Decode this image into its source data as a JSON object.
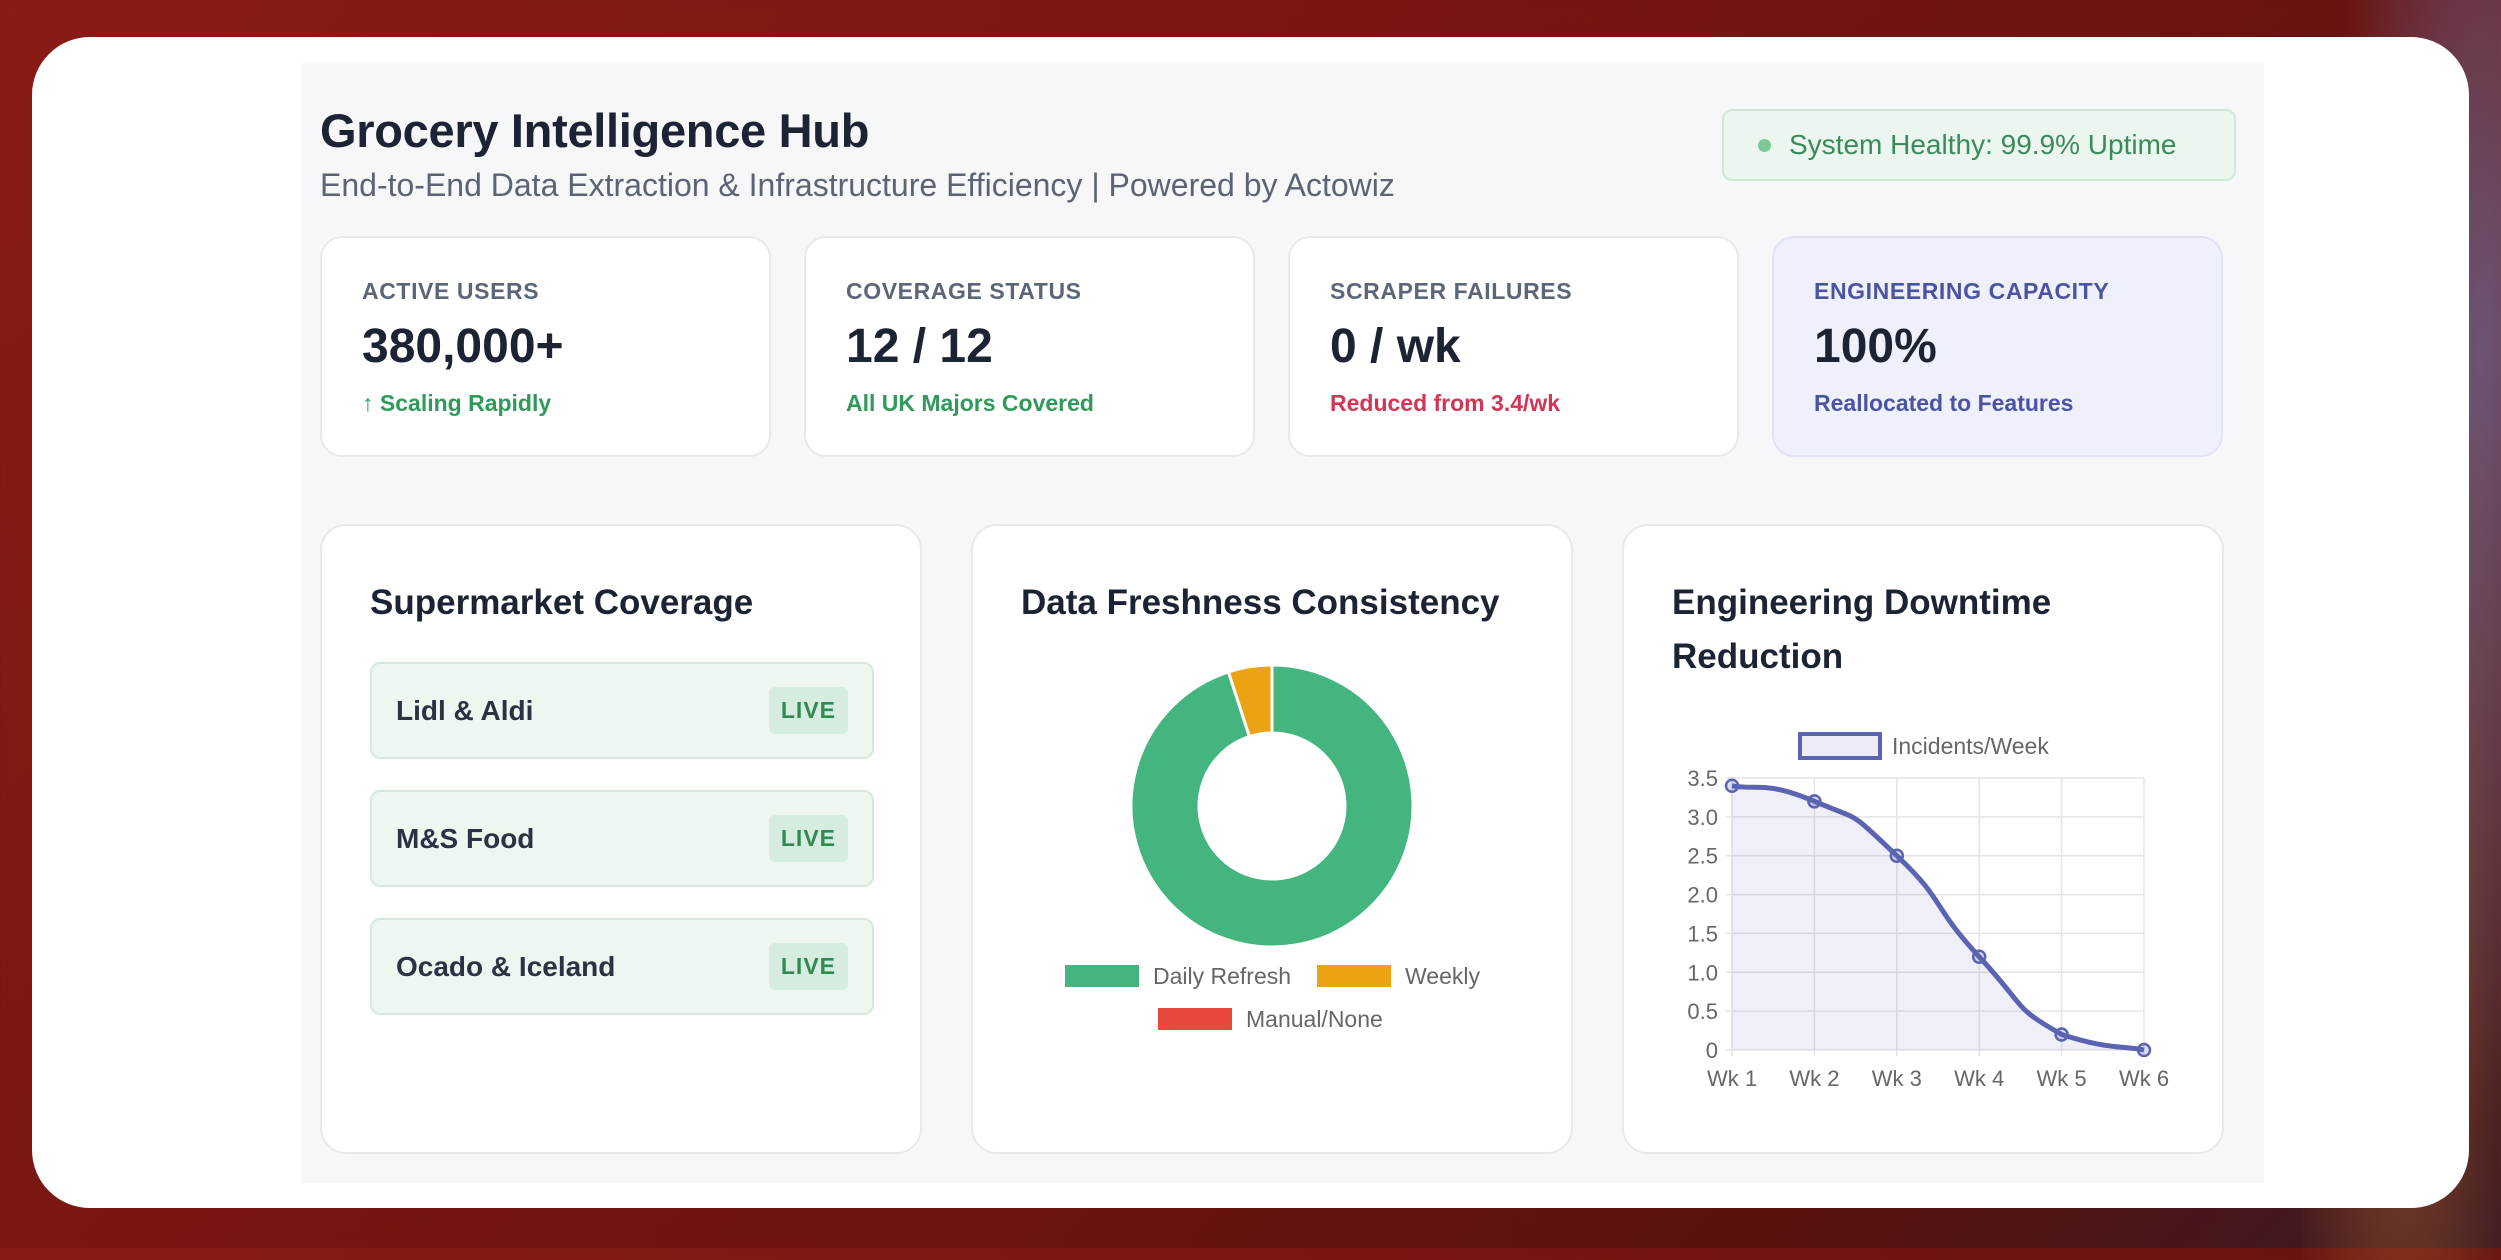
{
  "header": {
    "title": "Grocery Intelligence Hub",
    "subtitle": "End-to-End Data Extraction & Infrastructure Efficiency | Powered by Actowiz",
    "status": "System Healthy: 99.9% Uptime"
  },
  "kpis": [
    {
      "label": "ACTIVE USERS",
      "value": "380,000+",
      "note": "↑ Scaling Rapidly",
      "note_color": "#2f9a5a"
    },
    {
      "label": "COVERAGE STATUS",
      "value": "12 / 12",
      "note": "All UK Majors Covered",
      "note_color": "#2f9a5a"
    },
    {
      "label": "SCRAPER FAILURES",
      "value": "0 / wk",
      "note": "Reduced from 3.4/wk",
      "note_color": "#d63454"
    },
    {
      "label": "ENGINEERING CAPACITY",
      "value": "100%",
      "note": "Reallocated to Features",
      "note_color": "#4c54a2"
    }
  ],
  "coverage": {
    "title": "Supermarket Coverage",
    "items": [
      {
        "name": "Lidl & Aldi",
        "status": "LIVE"
      },
      {
        "name": "M&S Food",
        "status": "LIVE"
      },
      {
        "name": "Ocado & Iceland",
        "status": "LIVE"
      }
    ]
  },
  "freshness": {
    "title": "Data Freshness Consistency"
  },
  "downtime": {
    "title_line1": "Engineering Downtime",
    "title_line2": "Reduction"
  },
  "chart_data": [
    {
      "type": "pie",
      "style": "doughnut",
      "categories": [
        "Daily Refresh",
        "Weekly",
        "Manual/None"
      ],
      "values": [
        95,
        5,
        0
      ],
      "colors": [
        "#44b57f",
        "#eba313",
        "#e8483f"
      ],
      "legend": "bottom"
    },
    {
      "type": "line",
      "series": [
        {
          "name": "Incidents/Week",
          "values": [
            3.4,
            3.2,
            2.5,
            1.2,
            0.2,
            0
          ]
        }
      ],
      "categories": [
        "Wk 1",
        "Wk 2",
        "Wk 3",
        "Wk 4",
        "Wk 5",
        "Wk 6"
      ],
      "yticks": [
        "0",
        "0.5",
        "1.0",
        "1.5",
        "2.0",
        "2.5",
        "3.0",
        "3.5"
      ],
      "ylim": [
        0,
        3.5
      ],
      "color": "#5b64b3",
      "fill": true,
      "grid": true,
      "legend": "top"
    }
  ]
}
